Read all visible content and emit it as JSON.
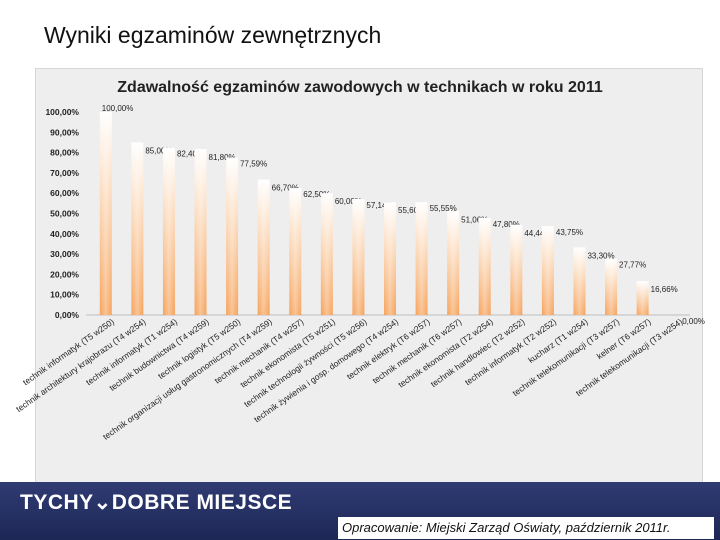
{
  "slide": {
    "title": "Wyniki egzaminów zewnętrznych",
    "footer_logo": "TYCHY⌄DOBRE MIEJSCE",
    "source_note": "Opracowanie: Miejski Zarząd Oświaty, październik 2011r."
  },
  "colors": {
    "footer_bg": "#27306a",
    "bar_top": "#ffffff",
    "bar_bottom": "#f6a25a"
  },
  "chart_data": {
    "type": "bar",
    "title": "Zdawalność egzaminów zawodowych w technikach w roku 2011",
    "ylim": [
      0,
      100
    ],
    "yticks": [
      "0,00%",
      "10,00%",
      "20,00%",
      "30,00%",
      "40,00%",
      "50,00%",
      "60,00%",
      "70,00%",
      "80,00%",
      "90,00%",
      "100,00%"
    ],
    "categories": [
      "technik informatyk (T5 w250)",
      "technik architektury krajobrazu (T4 w254)",
      "technik informatyk (T1 w254)",
      "technik budownictwa (T4 w259)",
      "technik logistyk (T5 w250)",
      "technik organizacji usług gastronomicznych (T4 w259)",
      "technik mechanik (T4 w257)",
      "technik ekonomista (T5 w251)",
      "technik technologii żywności (T5 w256)",
      "technik żywienia i gosp. domowego (T4 w254)",
      "technik elektryk (T6 w257)",
      "technik mechanik (T6 w257)",
      "technik ekonomista (T2 w254)",
      "technik handlowiec (T2 w252)",
      "technik informatyk (T2 w252)",
      "kucharz (T1 w254)",
      "technik telekomunikacji (T3 w257)",
      "kelner (T6 w257)",
      "technik telekomunikacji (T3 w254)"
    ],
    "values": [
      100.0,
      85.0,
      82.4,
      81.8,
      77.59,
      66.7,
      62.5,
      60.0,
      57.14,
      55.6,
      55.55,
      51.06,
      47.8,
      44.44,
      43.75,
      33.3,
      27.77,
      16.66,
      0.0
    ],
    "labels": [
      "100,00%",
      "85,00%",
      "82,40%",
      "81,80%",
      "77,59%",
      "66,70%",
      "62,50%",
      "60,00%",
      "57,14%",
      "55,60%",
      "55,55%",
      "51,06%",
      "47,80%",
      "44,44%",
      "43,75%",
      "33,30%",
      "27,77%",
      "16,66%",
      "0,00%"
    ]
  }
}
